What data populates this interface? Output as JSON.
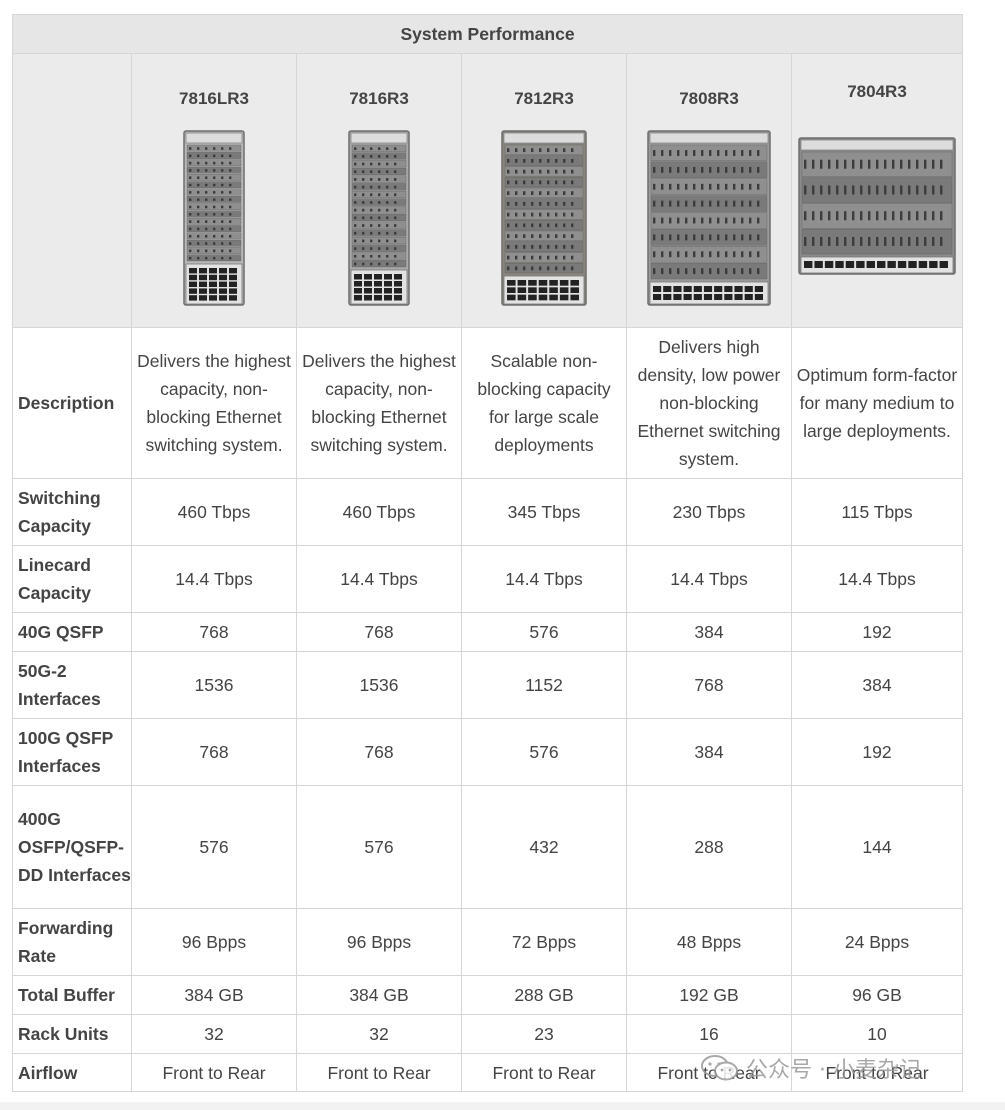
{
  "title": "System Performance",
  "models": [
    {
      "name": "7816LR3",
      "slots": 16,
      "top_units": 1,
      "port_rows": 5,
      "color": "#b8b8b8"
    },
    {
      "name": "7816R3",
      "slots": 16,
      "top_units": 1,
      "port_rows": 4,
      "color": "#a9a9a9"
    },
    {
      "name": "7812R3",
      "slots": 12,
      "top_units": 1,
      "port_rows": 3,
      "color": "#8c857e"
    },
    {
      "name": "7808R3",
      "slots": 8,
      "top_units": 1,
      "port_rows": 2,
      "color": "#9a9a9a"
    },
    {
      "name": "7804R3",
      "slots": 4,
      "top_units": 1,
      "port_rows": 1,
      "color": "#8a8a8a"
    }
  ],
  "rows": [
    {
      "label": "Description",
      "values": [
        "Delivers the highest capacity, non-blocking Ethernet switching system.",
        "Delivers the highest capacity, non-blocking Ethernet switching system.",
        "Scalable non-blocking capacity for large scale deployments",
        "Delivers high density, low power non-blocking Ethernet switching system.",
        "Optimum form-factor for many medium to large deployments."
      ]
    },
    {
      "label": "Switching Capacity",
      "values": [
        "460 Tbps",
        "460 Tbps",
        "345 Tbps",
        "230 Tbps",
        "115 Tbps"
      ]
    },
    {
      "label": "Linecard Capacity",
      "values": [
        "14.4 Tbps",
        "14.4 Tbps",
        "14.4 Tbps",
        "14.4 Tbps",
        "14.4 Tbps"
      ]
    },
    {
      "label": "40G QSFP",
      "values": [
        "768",
        "768",
        "576",
        "384",
        "192"
      ]
    },
    {
      "label": "50G-2 Interfaces",
      "values": [
        "1536",
        "1536",
        "1152",
        "768",
        "384"
      ]
    },
    {
      "label": "100G QSFP Interfaces",
      "values": [
        "768",
        "768",
        "576",
        "384",
        "192"
      ]
    },
    {
      "label": "400G OSFP/QSFP-DD Interfaces",
      "values": [
        "576",
        "576",
        "432",
        "288",
        "144"
      ]
    },
    {
      "label": "Forwarding Rate",
      "values": [
        "96 Bpps",
        "96 Bpps",
        "72 Bpps",
        "48 Bpps",
        "24 Bpps"
      ]
    },
    {
      "label": "Total Buffer",
      "values": [
        "384 GB",
        "384 GB",
        "288 GB",
        "192 GB",
        "96 GB"
      ]
    },
    {
      "label": "Rack Units",
      "values": [
        "32",
        "32",
        "23",
        "16",
        "10"
      ]
    },
    {
      "label": "Airflow",
      "values": [
        "Front to Rear",
        "Front to Rear",
        "Front to Rear",
        "Front to Rear",
        "Front to Rear"
      ]
    }
  ],
  "watermark": "公众号 · 小麦杂记",
  "colors": {
    "header_bg": "#e6e6e6",
    "border": "#d6d6d6",
    "text": "#444444"
  }
}
